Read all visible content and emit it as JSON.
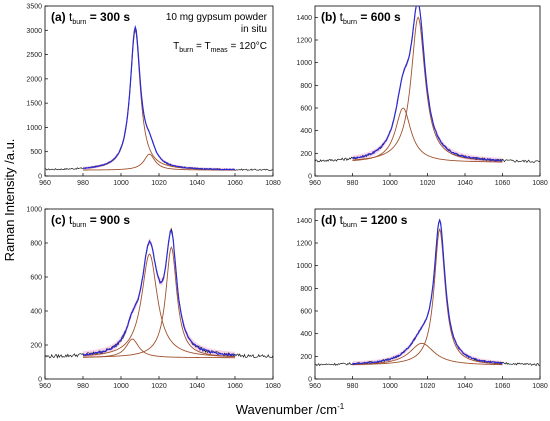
{
  "figure": {
    "ylabel": "Raman Intensity /a.u.",
    "xlabel_base": "Wavenumber /cm",
    "xlabel_sup": "-1"
  },
  "colors": {
    "measured": "#1a1a1a",
    "fit_total": "#2b2bd6",
    "component": "#a0522d",
    "residual_band": "#f2b8d8"
  },
  "chart_data": [
    {
      "type": "line",
      "label": "(a)",
      "t_burn": "300 s",
      "annotation": [
        "10 mg gypsum powder",
        "in situ"
      ],
      "temp_note": {
        "a": "T",
        "a_sub": "burn",
        "eq1": " = T",
        "b_sub": "meas",
        "eq2": " = 120°C"
      },
      "xlim": [
        960,
        1080
      ],
      "ylim": [
        0,
        3500
      ],
      "xticks": [
        960,
        980,
        1000,
        1020,
        1040,
        1060,
        1080
      ],
      "yticks": [
        0,
        500,
        1000,
        1500,
        2000,
        2500,
        3000,
        3500
      ],
      "baseline": 120,
      "noise": 15,
      "fit_range": [
        980,
        1060
      ],
      "peaks": [
        {
          "center": 1007.5,
          "height": 2880,
          "hwhm": 3.2
        },
        {
          "center": 1015,
          "height": 330,
          "hwhm": 3.5
        }
      ]
    },
    {
      "type": "line",
      "label": "(b)",
      "t_burn": "600 s",
      "xlim": [
        960,
        1080
      ],
      "ylim": [
        0,
        1500
      ],
      "xticks": [
        960,
        980,
        1000,
        1020,
        1040,
        1060,
        1080
      ],
      "yticks": [
        0,
        200,
        400,
        600,
        800,
        1000,
        1200,
        1400
      ],
      "baseline": 120,
      "noise": 12,
      "fit_range": [
        980,
        1060
      ],
      "peaks": [
        {
          "center": 1007,
          "height": 480,
          "hwhm": 5
        },
        {
          "center": 1015,
          "height": 1280,
          "hwhm": 4.5
        }
      ]
    },
    {
      "type": "line",
      "label": "(c)",
      "t_burn": "900 s",
      "xlim": [
        960,
        1080
      ],
      "ylim": [
        0,
        1000
      ],
      "xticks": [
        960,
        980,
        1000,
        1020,
        1040,
        1060,
        1080
      ],
      "yticks": [
        0,
        200,
        400,
        600,
        800,
        1000
      ],
      "baseline": 125,
      "noise": 10,
      "fit_range": [
        980,
        1060
      ],
      "peaks": [
        {
          "center": 1006,
          "height": 110,
          "hwhm": 4
        },
        {
          "center": 1015,
          "height": 610,
          "hwhm": 5
        },
        {
          "center": 1026.5,
          "height": 650,
          "hwhm": 3.5
        }
      ]
    },
    {
      "type": "line",
      "label": "(d)",
      "t_burn": "1200 s",
      "xlim": [
        960,
        1080
      ],
      "ylim": [
        0,
        1500
      ],
      "xticks": [
        960,
        980,
        1000,
        1020,
        1040,
        1060,
        1080
      ],
      "yticks": [
        0,
        200,
        400,
        600,
        800,
        1000,
        1200,
        1400
      ],
      "baseline": 120,
      "noise": 10,
      "fit_range": [
        980,
        1060
      ],
      "peaks": [
        {
          "center": 1017,
          "height": 195,
          "hwhm": 8
        },
        {
          "center": 1026.5,
          "height": 1200,
          "hwhm": 3.5
        }
      ]
    }
  ]
}
